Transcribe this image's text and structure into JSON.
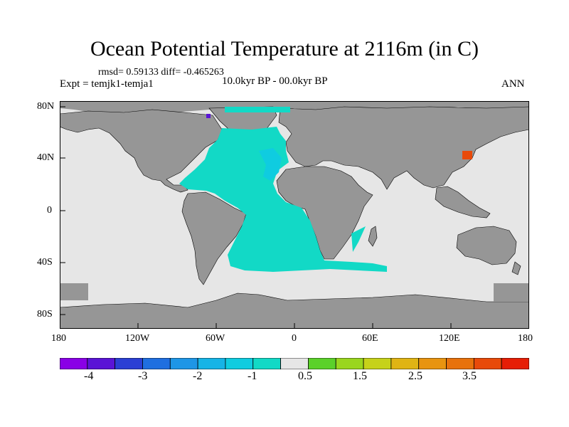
{
  "title": "Ocean Potential Temperature at 2116m (in C)",
  "stats": "rmsd= 0.59133 diff= -0.465263",
  "experiment": "Expt = temjk1-temja1",
  "period": "10.0kyr BP - 00.0kyr BP",
  "season": "ANN",
  "lat_ticks": [
    "80N",
    "40N",
    "0",
    "40S",
    "80S"
  ],
  "lon_ticks": [
    "180",
    "120W",
    "60W",
    "0",
    "60E",
    "120E",
    "180"
  ],
  "colorbar": {
    "colors": [
      "#8a00e6",
      "#5a14d6",
      "#2b3fd4",
      "#1f6fe0",
      "#1e96e6",
      "#16b4e6",
      "#0fcce0",
      "#12d9c6",
      "#e6e6e6",
      "#5bd12a",
      "#9ad61e",
      "#c6d21a",
      "#e0b414",
      "#e89410",
      "#e8720c",
      "#e84a0a",
      "#e61e06"
    ],
    "labels": [
      "-4",
      "-3",
      "-2",
      "-1",
      "0.5",
      "1.5",
      "2.5",
      "3.5"
    ]
  },
  "palette": {
    "land": "#969696",
    "ocean_zero": "#e6e6e6",
    "ocean_neg1": "#12d9c6",
    "ocean_neg1b": "#0fcce0",
    "positive_hot": "#e84a0a",
    "negative_purple": "#5a14d6"
  }
}
